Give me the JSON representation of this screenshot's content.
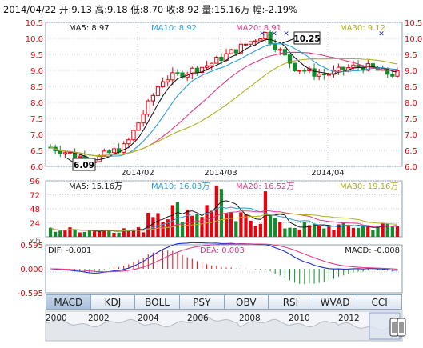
{
  "header": {
    "date": "2014/04/22",
    "open_label": "开:",
    "open": "9.13",
    "high_label": "高:",
    "high": "9.18",
    "low_label": "低:",
    "low": "8.70",
    "close_label": "收:",
    "close": "8.92",
    "volume_label": "量:",
    "volume": "15.16万",
    "change_label": "幅:",
    "change": "-2.19%"
  },
  "price_panel": {
    "legend": [
      {
        "label": "MA5: 8.97",
        "color": "#1a1a1a"
      },
      {
        "label": "MA10: 8.92",
        "color": "#2a9fd8"
      },
      {
        "label": "MA20: 8.91",
        "color": "#e03a8a"
      },
      {
        "label": "MA30: 9.12",
        "color": "#b0b020"
      }
    ],
    "y_ticks": [
      "10.5",
      "10.0",
      "9.5",
      "9.0",
      "8.5",
      "8.0",
      "7.5",
      "7.0",
      "6.5",
      "6.0"
    ],
    "x_ticks": [
      "2014/02",
      "2014/03",
      "2014/04"
    ],
    "max_label": "10.25",
    "min_label": "6.09"
  },
  "volume_panel": {
    "legend": [
      {
        "label": "MA5: 15.16万",
        "color": "#1a1a1a"
      },
      {
        "label": "MA10: 16.03万",
        "color": "#2a9fd8"
      },
      {
        "label": "MA20: 16.52万",
        "color": "#e03a8a"
      },
      {
        "label": "MA30: 19.16万",
        "color": "#b0b020"
      }
    ],
    "y_ticks": [
      "96",
      "72",
      "48",
      "24"
    ],
    "unit": "x万"
  },
  "macd_panel": {
    "dif": "DIF: -0.001",
    "dea": "DEA: 0.003",
    "macd": "MACD: -0.008",
    "y_ticks": [
      "0.595",
      "0.000",
      "-0.595"
    ]
  },
  "tabs": [
    "MACD",
    "KDJ",
    "BOLL",
    "PSY",
    "OBV",
    "RSI",
    "WVAD",
    "CCI"
  ],
  "active_tab": "MACD",
  "overview": {
    "years": [
      "2000",
      "2002",
      "2004",
      "2006",
      "2008",
      "2010",
      "2012"
    ]
  },
  "colors": {
    "up": "#e8000b",
    "down": "#138c2e",
    "grid": "#c5d0dc",
    "accent": "#1a2fd6",
    "axis_text_red": "#e8000b"
  },
  "chart_data": {
    "type": "candlestick",
    "price_range": [
      6.0,
      10.5
    ],
    "volume_range": [
      0,
      96
    ],
    "macd_range": [
      -0.595,
      0.595
    ],
    "x_labels": [
      "2014/02",
      "2014/03",
      "2014/04"
    ],
    "marked_high": 10.25,
    "marked_low": 6.09,
    "last_bar": {
      "open": 9.13,
      "high": 9.18,
      "low": 8.7,
      "close": 8.92,
      "volume": 15.16,
      "change_pct": -2.19
    }
  }
}
